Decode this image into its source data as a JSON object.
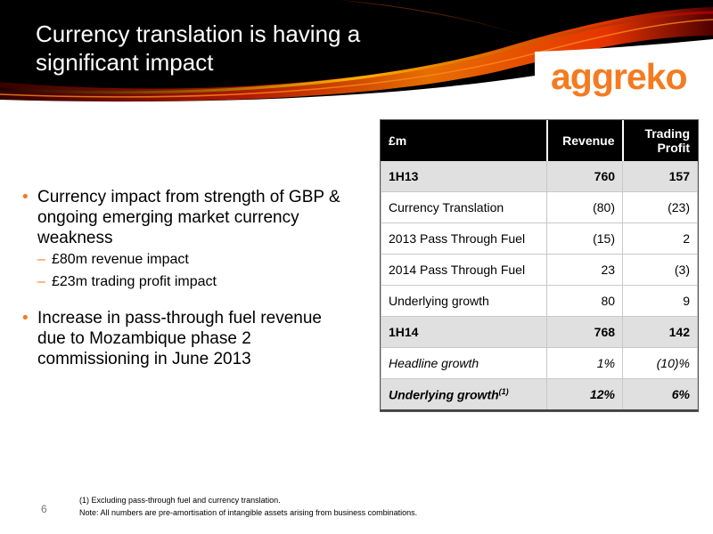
{
  "header": {
    "title": "Currency translation is having a significant impact",
    "logo_text": "aggreko"
  },
  "colors": {
    "accent": "#f47b20",
    "header_bg": "#000000",
    "row_shade": "#e0e0e0"
  },
  "bullets": [
    {
      "text": "Currency impact from strength of GBP & ongoing emerging market currency weakness",
      "subs": [
        "£80m revenue impact",
        "£23m trading profit impact"
      ]
    },
    {
      "text": "Increase in pass-through fuel revenue due to Mozambique phase 2 commissioning in June 2013",
      "subs": []
    }
  ],
  "table": {
    "headers": [
      "£m",
      "Revenue",
      "Trading Profit"
    ],
    "rows": [
      {
        "label": "1H13",
        "revenue": "760",
        "profit": "157",
        "style": "shade"
      },
      {
        "label": "Currency Translation",
        "revenue": "(80)",
        "profit": "(23)",
        "style": ""
      },
      {
        "label": "2013 Pass Through Fuel",
        "revenue": "(15)",
        "profit": "2",
        "style": ""
      },
      {
        "label": "2014 Pass Through Fuel",
        "revenue": "23",
        "profit": "(3)",
        "style": ""
      },
      {
        "label": "Underlying growth",
        "revenue": "80",
        "profit": "9",
        "style": ""
      },
      {
        "label": "1H14",
        "revenue": "768",
        "profit": "142",
        "style": "shade"
      },
      {
        "label": "Headline growth",
        "revenue": "1%",
        "profit": "(10)%",
        "style": "italic"
      },
      {
        "label": "Underlying growth",
        "label_sup": "(1)",
        "revenue": "12%",
        "profit": "6%",
        "style": "bi"
      }
    ]
  },
  "footer": {
    "page_number": "6",
    "footnote": "(1) Excluding pass-through fuel and currency translation.",
    "note": "Note: All numbers are pre-amortisation of intangible assets arising from business combinations."
  }
}
